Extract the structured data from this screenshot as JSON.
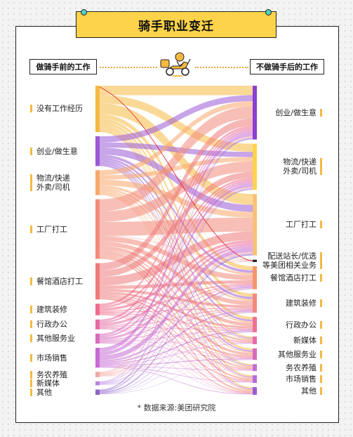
{
  "title": "骑手职业变迁",
  "left_header": "做骑手前的工作",
  "right_header": "不做骑手后的工作",
  "source": "数据来源:美团研究院",
  "source_mark": "*",
  "colors": {
    "title_bg": "#fcd34a",
    "accent_teal": "#4fd1c5",
    "label_tick": "#f5b942",
    "highlight_line": "#e11d2a"
  },
  "icons": {
    "rider": "rider-on-scooter-icon"
  },
  "left_nodes": [
    {
      "label": "没有工作经历",
      "value": 14,
      "color": "#f5b942"
    },
    {
      "label": "创业/做生意",
      "value": 9,
      "color": "#9b59d6"
    },
    {
      "label": "物流/快递\n外卖/司机",
      "value": 7.5,
      "color": "#f7a86b"
    },
    {
      "label": "工厂打工",
      "value": 18,
      "color": "#f38b7a"
    },
    {
      "label": "餐馆酒店打工",
      "value": 11,
      "color": "#ef7a7a"
    },
    {
      "label": "建筑装修",
      "value": 3.5,
      "color": "#ee6c8d"
    },
    {
      "label": "行政办公",
      "value": 3,
      "color": "#e56ba2"
    },
    {
      "label": "其他服务业",
      "value": 3,
      "color": "#d86bbd"
    },
    {
      "label": "市场销售",
      "value": 6,
      "color": "#c76bd4"
    },
    {
      "label": "务农养殖",
      "value": 1.6,
      "color": "#f2a7a0"
    },
    {
      "label": "新媒体",
      "value": 1.2,
      "color": "#b783e0"
    },
    {
      "label": "其他",
      "value": 1.6,
      "color": "#8e63c9"
    }
  ],
  "right_nodes": [
    {
      "label": "创业/做生意",
      "value": 14,
      "color": "#8a3fd1"
    },
    {
      "label": "物流/快递\n外卖/司机",
      "value": 12,
      "color": "#fcd34a"
    },
    {
      "label": "工厂打工",
      "value": 16,
      "color": "#f8c17a"
    },
    {
      "label": "配送站长/优选\n等美团相关业务",
      "value": 0.6,
      "color": "#222222"
    },
    {
      "label": "餐馆酒店打工",
      "value": 6,
      "color": "#f5956b"
    },
    {
      "label": "建筑装修",
      "value": 5,
      "color": "#f28a7e"
    },
    {
      "label": "行政办公",
      "value": 4,
      "color": "#ee7291"
    },
    {
      "label": "新媒体",
      "value": 2,
      "color": "#e86aa6"
    },
    {
      "label": "其他服务业",
      "value": 3,
      "color": "#d66ac0"
    },
    {
      "label": "务农养殖",
      "value": 1.8,
      "color": "#c56dd6"
    },
    {
      "label": "市场销售",
      "value": 2,
      "color": "#b36cdc"
    },
    {
      "label": "其他",
      "value": 2,
      "color": "#9a5dd0"
    }
  ]
}
